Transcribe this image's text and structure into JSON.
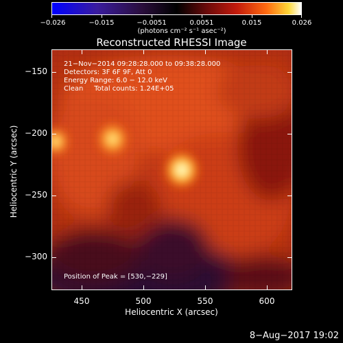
{
  "colorbar": {
    "tick_labels": [
      "−0.026",
      "−0.015",
      "−0.0051",
      "0.0051",
      "0.015",
      "0.026"
    ],
    "units": "(photons cm⁻² s⁻¹ asec⁻²)",
    "colors": [
      "#0000ff",
      "#2a0e3c",
      "#000000",
      "#c21a0c",
      "#ff6a10",
      "#ffd838",
      "#ffffff"
    ]
  },
  "title": "Reconstructed RHESSI Image",
  "annotations": {
    "line1": "21−Nov−2014 09:28:28.000 to 09:38:28.000",
    "line2": "Detectors: 3F 6F 9F, Att 0",
    "line3": "Energy Range: 6.0 − 12.0 keV",
    "line4": "Clean     Total counts: 1.24E+05",
    "peak": "Position of Peak = [530,−229]"
  },
  "axes": {
    "x_title": "Heliocentric X (arcsec)",
    "y_title": "Heliocentric Y (arcsec)",
    "x_ticks": [
      "450",
      "500",
      "550",
      "600"
    ],
    "y_ticks": [
      "−150",
      "−200",
      "−250",
      "−300"
    ],
    "x_range": [
      425,
      620
    ],
    "y_range": [
      -327,
      -132
    ]
  },
  "sources": [
    {
      "x": 530,
      "y": -229,
      "label": "peak"
    },
    {
      "x": 474,
      "y": -204
    },
    {
      "x": 428,
      "y": -206
    }
  ],
  "timestamp": "8−Aug−2017 19:02"
}
